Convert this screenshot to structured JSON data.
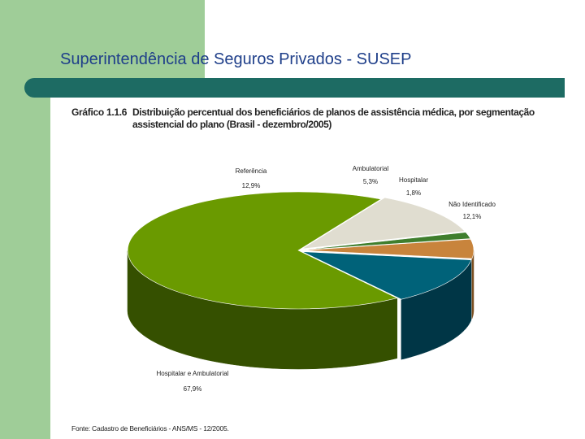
{
  "slide": {
    "title": "Superintendência de Seguros Privados - SUSEP"
  },
  "figure": {
    "number": "Gráfico 1.1.6",
    "caption": "Distribuição percentual dos beneficiários de planos de assistência médica, por segmentação assistencial do plano (Brasil - dezembro/2005)",
    "source": "Fonte: Cadastro de Beneficiários - ANS/MS - 12/2005."
  },
  "colors": {
    "band": "#9fcd98",
    "bar": "#1d6b63",
    "title": "#1f3f8a"
  },
  "chart_data": {
    "type": "pie",
    "style": "3d-exploded",
    "slices": [
      {
        "name": "Hospitalar e Ambulatorial",
        "value": 67.9,
        "label": "67,9%",
        "color": "#6a9a00",
        "side": "#355000"
      },
      {
        "name": "Referência",
        "value": 12.9,
        "label": "12,9%",
        "color": "#006279",
        "side": "#003646"
      },
      {
        "name": "Ambulatorial",
        "value": 5.3,
        "label": "5,3%",
        "color": "#c8843c",
        "side": "#7a4f20"
      },
      {
        "name": "Hospitalar",
        "value": 1.8,
        "label": "1,8%",
        "color": "#3f7e2d",
        "side": "#244a18"
      },
      {
        "name": "Não Identificado",
        "value": 12.1,
        "label": "12,1%",
        "color": "#e0ddd0",
        "side": "#9d9a8c"
      }
    ]
  }
}
